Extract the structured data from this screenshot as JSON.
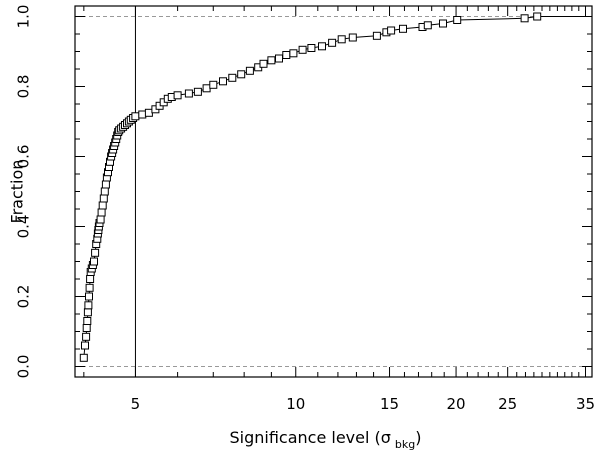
{
  "chart_data": {
    "type": "scatter",
    "title": "",
    "xlabel": "Significance level (σ",
    "xlabel_subscript": "bkg",
    "xlabel_close": ")",
    "ylabel": "Fraction",
    "xscale": "log",
    "xlim": [
      3.85,
      36
    ],
    "ylim": [
      -0.03,
      1.03
    ],
    "x_ticks": [
      5,
      10,
      15,
      20,
      25,
      35
    ],
    "y_ticks": [
      0.0,
      0.2,
      0.4,
      0.6,
      0.8,
      1.0
    ],
    "y_tick_labels": [
      "0.0",
      "0.2",
      "0.4",
      "0.6",
      "0.8",
      "1.0"
    ],
    "reference_hlines": [
      0.0,
      1.0
    ],
    "reference_vline": 5,
    "grid": false,
    "legend": "none",
    "series": [
      {
        "marker": "open-square",
        "connected": true,
        "x": [
          4.0,
          4.02,
          4.04,
          4.05,
          4.06,
          4.07,
          4.08,
          4.09,
          4.1,
          4.11,
          4.12,
          4.14,
          4.16,
          4.18,
          4.2,
          4.22,
          4.24,
          4.25,
          4.26,
          4.27,
          4.28,
          4.3,
          4.32,
          4.34,
          4.36,
          4.38,
          4.4,
          4.42,
          4.44,
          4.46,
          4.48,
          4.5,
          4.52,
          4.54,
          4.56,
          4.58,
          4.6,
          4.62,
          4.64,
          4.66,
          4.7,
          4.74,
          4.78,
          4.82,
          4.86,
          4.9,
          4.95,
          5.0,
          5.15,
          5.3,
          5.45,
          5.55,
          5.65,
          5.75,
          5.85,
          6.0,
          6.3,
          6.55,
          6.8,
          7.0,
          7.3,
          7.6,
          7.9,
          8.2,
          8.5,
          8.7,
          9.0,
          9.3,
          9.6,
          9.9,
          10.3,
          10.7,
          11.2,
          11.7,
          12.2,
          12.8,
          14.2,
          14.8,
          15.1,
          15.9,
          17.3,
          17.7,
          18.9,
          20.1,
          26.9,
          28.4
        ],
        "y": [
          0.025,
          0.06,
          0.085,
          0.11,
          0.13,
          0.155,
          0.175,
          0.2,
          0.225,
          0.25,
          0.27,
          0.28,
          0.29,
          0.3,
          0.325,
          0.35,
          0.365,
          0.38,
          0.39,
          0.4,
          0.41,
          0.42,
          0.44,
          0.46,
          0.48,
          0.5,
          0.52,
          0.54,
          0.555,
          0.57,
          0.585,
          0.6,
          0.61,
          0.62,
          0.63,
          0.64,
          0.65,
          0.66,
          0.67,
          0.675,
          0.68,
          0.685,
          0.69,
          0.695,
          0.7,
          0.705,
          0.71,
          0.715,
          0.72,
          0.725,
          0.735,
          0.745,
          0.755,
          0.765,
          0.77,
          0.775,
          0.78,
          0.785,
          0.795,
          0.805,
          0.815,
          0.825,
          0.835,
          0.845,
          0.855,
          0.865,
          0.875,
          0.88,
          0.89,
          0.895,
          0.905,
          0.91,
          0.915,
          0.925,
          0.935,
          0.94,
          0.945,
          0.955,
          0.96,
          0.965,
          0.97,
          0.975,
          0.98,
          0.99,
          0.995,
          1.0
        ]
      }
    ]
  }
}
